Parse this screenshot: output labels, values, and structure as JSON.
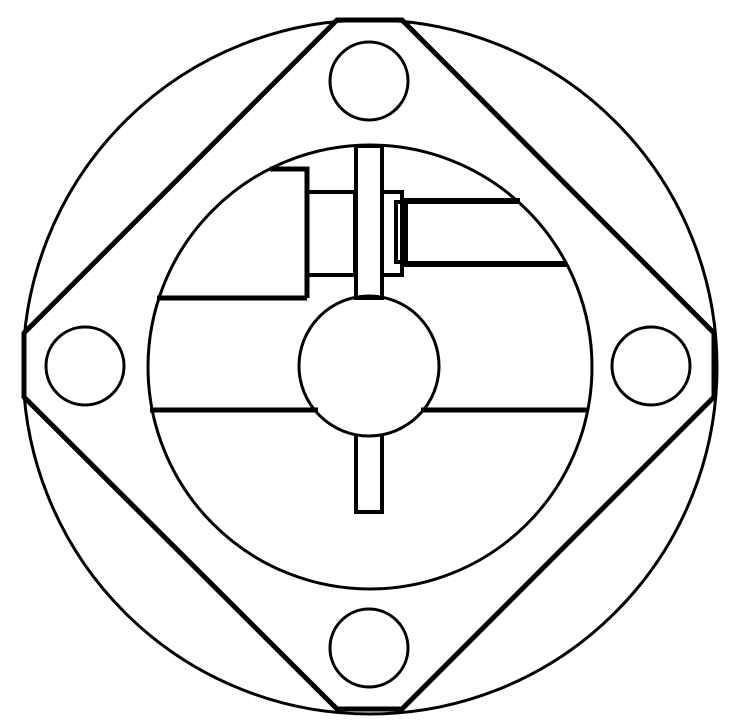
{
  "diagram": {
    "kind": "flange-cross-section",
    "colors": {
      "background": "#ffffff",
      "stroke": "#000000"
    },
    "labels": []
  }
}
